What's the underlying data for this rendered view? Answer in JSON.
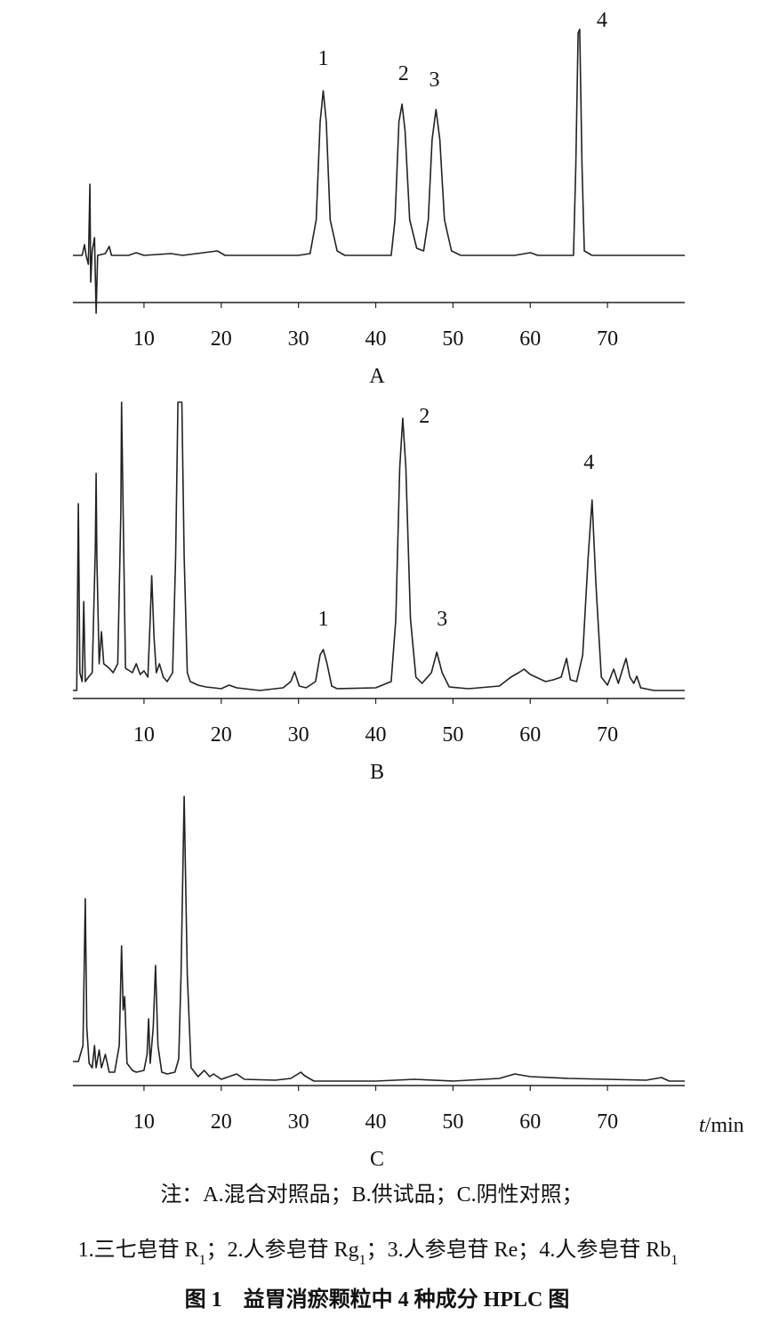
{
  "chart_data": [
    {
      "type": "line",
      "label": "A",
      "color": "#222222",
      "xlim": [
        0.8,
        80
      ],
      "xticks": [
        10,
        20,
        30,
        40,
        50,
        60,
        70
      ],
      "ylim": [
        -70,
        270
      ],
      "x": [
        0.8,
        2.0,
        2.3,
        2.5,
        2.8,
        3.0,
        3.1,
        3.3,
        3.6,
        3.8,
        4.0,
        5.0,
        5.5,
        5.8,
        8,
        9,
        10,
        13.5,
        15,
        19.5,
        20.5,
        30,
        31.5,
        32.3,
        32.8,
        33.2,
        33.6,
        34.1,
        35,
        36,
        42,
        42.5,
        43,
        43.4,
        43.8,
        44.4,
        45.3,
        46.2,
        46.8,
        47.3,
        47.8,
        48.3,
        48.9,
        49.8,
        51,
        58,
        60,
        61,
        65.6,
        65.9,
        66.2,
        66.4,
        66.7,
        67,
        68,
        80
      ],
      "values": [
        0,
        0,
        12,
        0,
        -10,
        80,
        -30,
        5,
        20,
        -65,
        0,
        2,
        10,
        0,
        0,
        3,
        0,
        2,
        0,
        5,
        0,
        0,
        2,
        40,
        150,
        185,
        150,
        40,
        5,
        0,
        0,
        40,
        150,
        170,
        140,
        40,
        8,
        5,
        40,
        130,
        164,
        130,
        40,
        5,
        0,
        0,
        3,
        0,
        0,
        100,
        250,
        254,
        100,
        5,
        0,
        0
      ],
      "annotations": [
        {
          "text": "1",
          "x": 33.2,
          "y": 214
        },
        {
          "text": "2",
          "x": 43.6,
          "y": 197
        },
        {
          "text": "3",
          "x": 47.6,
          "y": 190
        },
        {
          "text": "4",
          "x": 69.3,
          "y": 257
        }
      ]
    },
    {
      "type": "line",
      "label": "B",
      "color": "#222222",
      "xlim": [
        0.8,
        80
      ],
      "xticks": [
        10,
        20,
        30,
        40,
        50,
        60,
        70
      ],
      "ylim": [
        -10,
        325
      ],
      "x": [
        0.8,
        1.3,
        1.5,
        1.7,
        2.0,
        2.2,
        2.4,
        2.8,
        3.3,
        3.7,
        3.8,
        3.9,
        4.2,
        4.5,
        4.8,
        5.5,
        6.0,
        6.6,
        7.0,
        7.1,
        7.3,
        7.6,
        8.5,
        9,
        9.5,
        10,
        10.5,
        10.8,
        11.0,
        11.3,
        11.6,
        12,
        12.5,
        13,
        13.7,
        14.1,
        14.4,
        14.9,
        15.2,
        15.6,
        16,
        17,
        18,
        20,
        21,
        22,
        25,
        28,
        29,
        29.5,
        30.1,
        31,
        32.2,
        32.8,
        33.2,
        33.7,
        34.3,
        35,
        40,
        42,
        42.6,
        43.1,
        43.5,
        43.9,
        44.5,
        45.2,
        46,
        47.2,
        47.9,
        48.6,
        49.5,
        52,
        56,
        57.5,
        58.5,
        59.2,
        60,
        61,
        62,
        63,
        64,
        64.7,
        65.2,
        66,
        66.8,
        67.5,
        68,
        68.5,
        69.2,
        70,
        70.8,
        71.4,
        72,
        72.4,
        72.9,
        73.4,
        73.8,
        74.3,
        76,
        80
      ],
      "values": [
        0,
        0,
        210,
        20,
        10,
        100,
        10,
        15,
        20,
        160,
        244,
        150,
        30,
        66,
        30,
        25,
        20,
        30,
        200,
        324,
        200,
        25,
        20,
        30,
        18,
        22,
        15,
        80,
        129,
        60,
        20,
        30,
        15,
        10,
        20,
        150,
        324,
        324,
        150,
        20,
        10,
        6,
        4,
        2,
        6,
        3,
        0,
        3,
        10,
        21,
        5,
        3,
        10,
        40,
        46,
        30,
        5,
        2,
        3,
        10,
        80,
        250,
        306,
        250,
        80,
        15,
        8,
        20,
        43,
        20,
        4,
        2,
        5,
        15,
        20,
        24,
        18,
        14,
        10,
        12,
        15,
        36,
        12,
        10,
        40,
        150,
        214,
        120,
        15,
        6,
        24,
        8,
        25,
        36,
        15,
        8,
        16,
        3,
        0,
        0
      ],
      "annotations": [
        {
          "text": "1",
          "x": 33.2,
          "y": 73
        },
        {
          "text": "2",
          "x": 46.3,
          "y": 301
        },
        {
          "text": "3",
          "x": 48.6,
          "y": 73
        },
        {
          "text": "4",
          "x": 67.6,
          "y": 249
        }
      ]
    },
    {
      "type": "line",
      "label": "C",
      "color": "#222222",
      "xlim": [
        0.8,
        80
      ],
      "xticks": [
        10,
        20,
        30,
        40,
        50,
        60,
        70
      ],
      "ylim": [
        -10,
        325
      ],
      "xlabel": {
        "var": "t",
        "unit": "/min"
      },
      "x": [
        0.8,
        1.5,
        2.1,
        2.4,
        2.6,
        2.9,
        3.3,
        3.6,
        3.8,
        4.2,
        4.5,
        5,
        5.5,
        6.2,
        6.8,
        7.1,
        7.3,
        7.5,
        7.8,
        8.5,
        9,
        10,
        10.4,
        10.6,
        10.8,
        11.2,
        11.5,
        11.8,
        12.3,
        13,
        14,
        14.5,
        14.8,
        15.2,
        15.6,
        16.1,
        17,
        17.8,
        18.5,
        19,
        20,
        22,
        23,
        27,
        29,
        30.3,
        30.8,
        32,
        40,
        45,
        50,
        56,
        58,
        60,
        65,
        70,
        75,
        77,
        78,
        80
      ],
      "values": [
        22,
        22,
        40,
        205,
        60,
        20,
        15,
        40,
        15,
        35,
        15,
        30,
        10,
        10,
        40,
        152,
        80,
        95,
        20,
        12,
        10,
        12,
        30,
        70,
        20,
        60,
        130,
        40,
        10,
        8,
        10,
        25,
        120,
        320,
        120,
        15,
        5,
        12,
        5,
        8,
        2,
        8,
        2,
        1,
        3,
        10,
        6,
        0,
        0,
        2,
        0,
        3,
        8,
        5,
        3,
        2,
        1,
        4,
        0,
        0
      ]
    }
  ],
  "notes": {
    "line1": "注：A.混合对照品；B.供试品；C.阴性对照；",
    "line2": [
      {
        "text": "1.三七皂苷 R"
      },
      {
        "sub": "1"
      },
      {
        "text": "；2.人参皂苷 Rg"
      },
      {
        "sub": "1"
      },
      {
        "text": "；3.人参皂苷 Re；4.人参皂苷 Rb"
      },
      {
        "sub": "1"
      }
    ]
  },
  "caption": "图 1　益胃消瘀颗粒中 4 种成分 HPLC 图"
}
